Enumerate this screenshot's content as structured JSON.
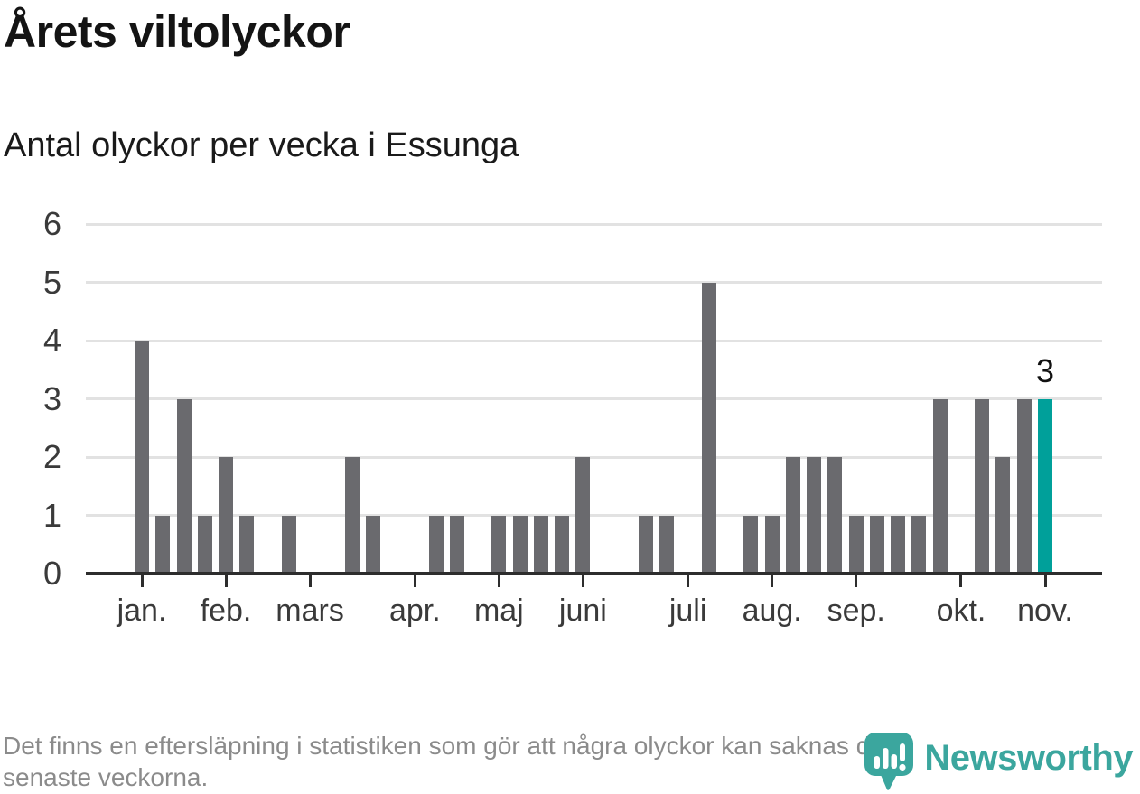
{
  "header": {
    "title": "Årets viltolyckor",
    "subtitle": "Antal olyckor per vecka i Essunga"
  },
  "footer": {
    "note_lines": [
      "Det finns en eftersläpning i statistiken som gör att några olyckor kan saknas de",
      "senaste veckorna."
    ],
    "brand": "Newsworthy"
  },
  "colors": {
    "bar": "#6a6a6e",
    "highlight": "#00a09a",
    "gridline": "#e2e2e2",
    "axis": "#2d2d2d",
    "brand_teal": "#3ba69e",
    "text_gray": "#8b8b8b"
  },
  "chart_data": {
    "type": "bar",
    "title": "Årets viltolyckor",
    "subtitle": "Antal olyckor per vecka i Essunga",
    "xlabel": "",
    "ylabel": "",
    "ylim": [
      0,
      6
    ],
    "yticks": [
      0,
      1,
      2,
      3,
      4,
      5,
      6
    ],
    "grid": true,
    "legend_position": "none",
    "x_unit": "vecka",
    "values": [
      4,
      1,
      3,
      1,
      2,
      1,
      0,
      1,
      0,
      0,
      2,
      1,
      0,
      0,
      1,
      1,
      0,
      1,
      1,
      1,
      1,
      2,
      0,
      0,
      1,
      1,
      0,
      5,
      0,
      1,
      1,
      2,
      2,
      2,
      1,
      1,
      1,
      1,
      3,
      0,
      3,
      2,
      3,
      3
    ],
    "highlight_index": 43,
    "highlight_label": "3",
    "month_ticks": [
      {
        "label": "jan.",
        "week": 0
      },
      {
        "label": "feb.",
        "week": 4
      },
      {
        "label": "mars",
        "week": 8
      },
      {
        "label": "apr.",
        "week": 13
      },
      {
        "label": "maj",
        "week": 17
      },
      {
        "label": "juni",
        "week": 21
      },
      {
        "label": "juli",
        "week": 26
      },
      {
        "label": "aug.",
        "week": 30
      },
      {
        "label": "sep.",
        "week": 34
      },
      {
        "label": "okt.",
        "week": 39
      },
      {
        "label": "nov.",
        "week": 43
      }
    ]
  }
}
